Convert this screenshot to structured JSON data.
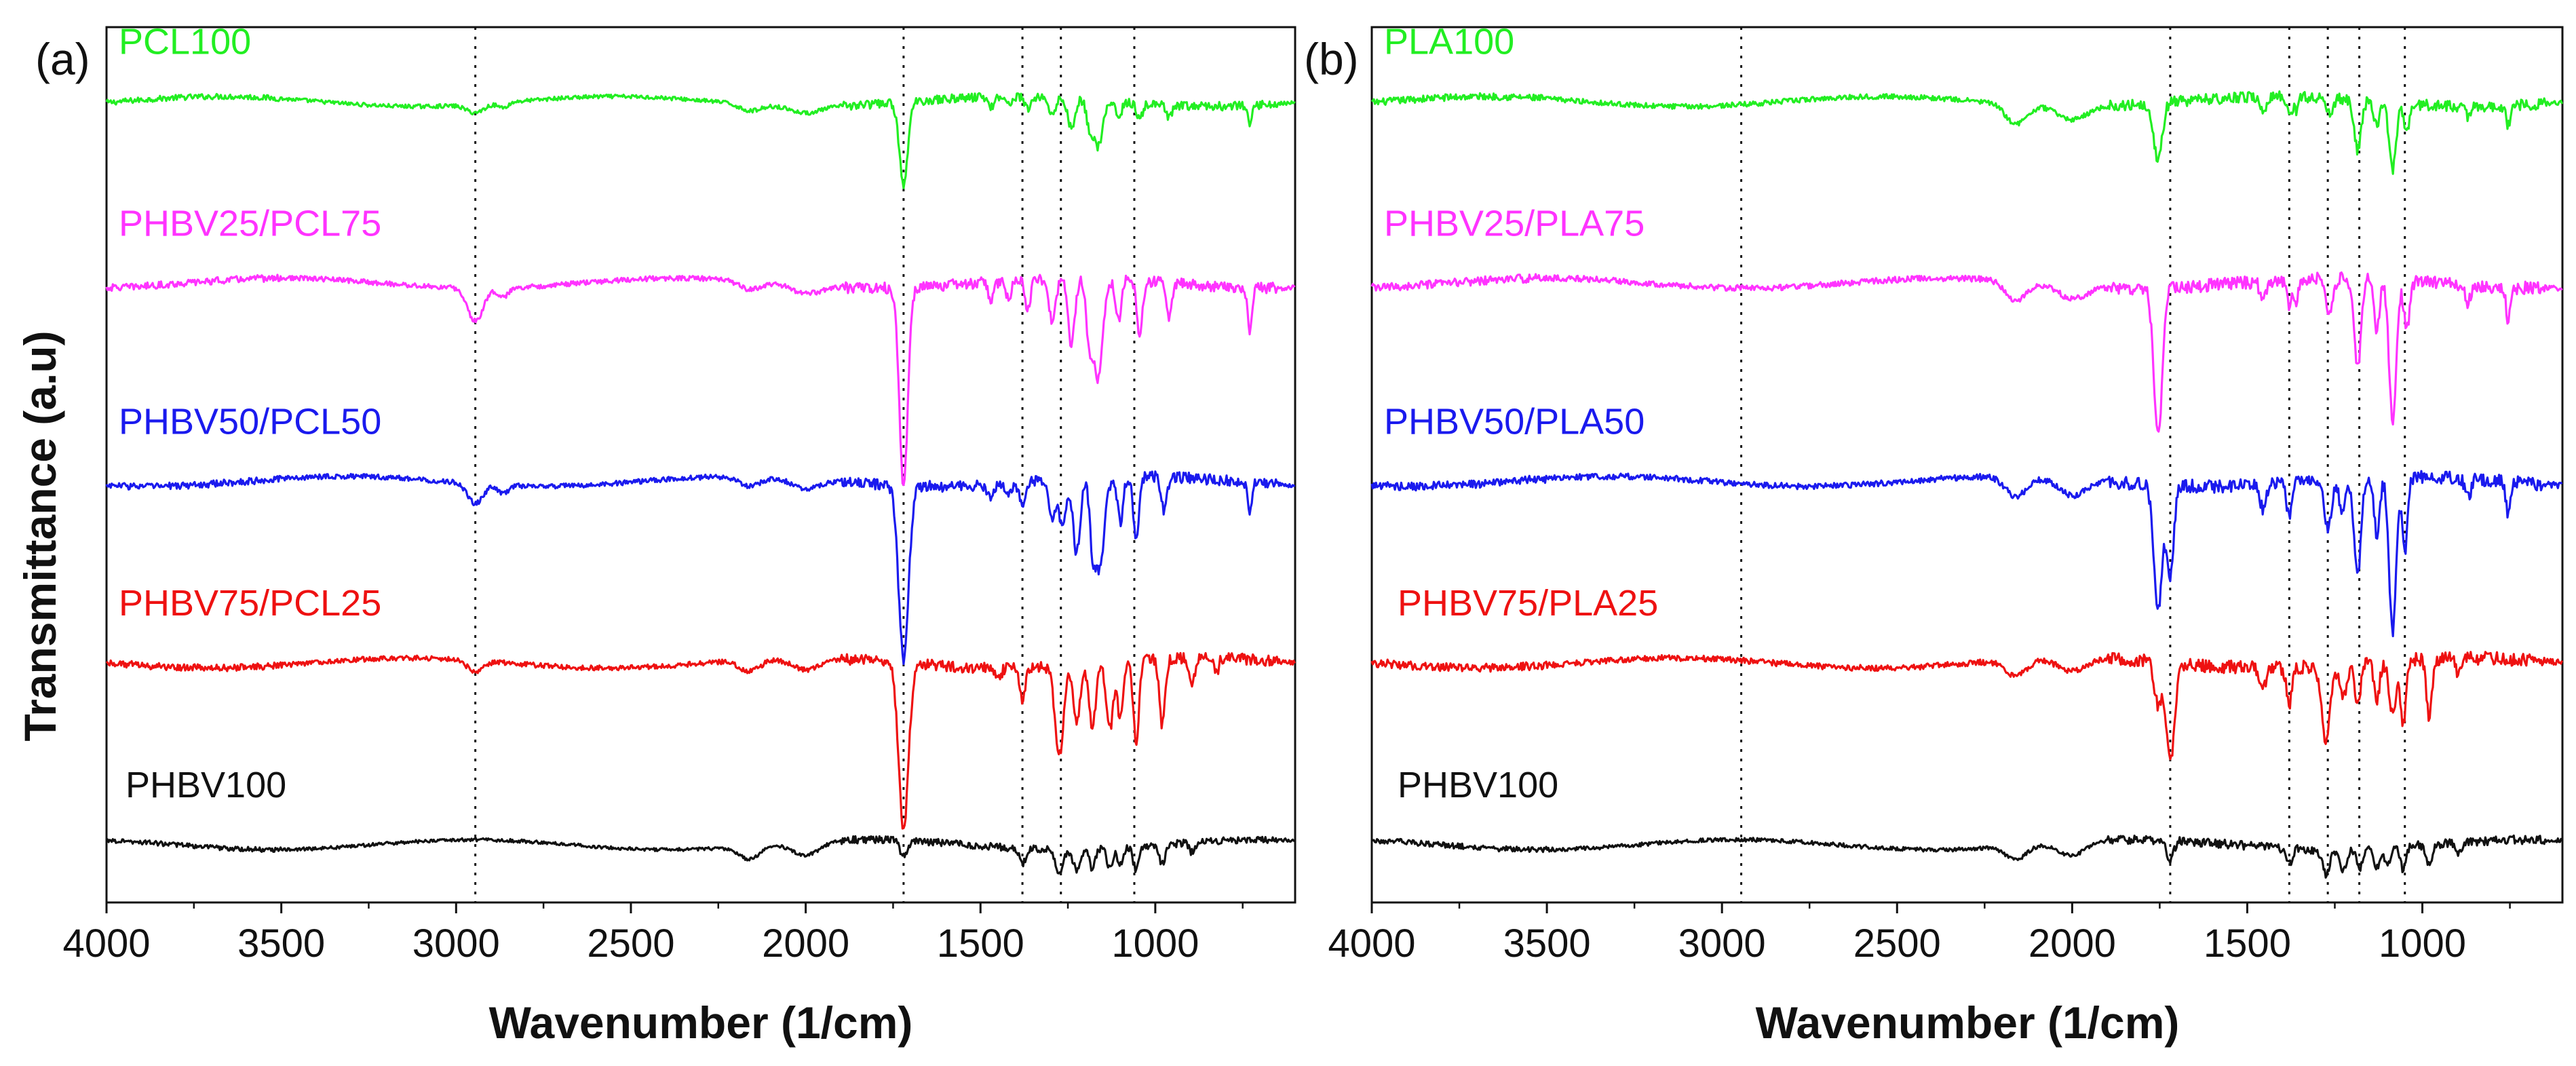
{
  "figure": {
    "y_axis_title": "Transmittance (a.u)"
  },
  "chart_data": [
    {
      "type": "line",
      "panel_label": "(a)",
      "xlabel": "Wavenumber (1/cm)",
      "ylabel": "Transmittance (a.u)",
      "xlim": [
        4000,
        600
      ],
      "x_reversed": true,
      "x_ticks": [
        4000,
        3500,
        3000,
        2500,
        2000,
        1500,
        1000
      ],
      "x_tick_labels": [
        "4000",
        "3500",
        "3000",
        "2500",
        "2000",
        "1500",
        "1000"
      ],
      "y_ticks_shown": false,
      "ylim": [
        0,
        5.3
      ],
      "reference_lines_x": [
        2945,
        1720,
        1380,
        1270,
        1060
      ],
      "reference_line_style": "dotted",
      "series": [
        {
          "name": "PCL100",
          "color": "#22ee22",
          "offset": 4.85,
          "bands": [
            [
              2945,
              0.05,
              25
            ],
            [
              2865,
              0.03,
              15
            ],
            [
              2160,
              0.04,
              30
            ],
            [
              2000,
              0.04,
              40
            ],
            [
              1720,
              0.5,
              12
            ],
            [
              1470,
              0.06,
              8
            ],
            [
              1420,
              0.05,
              8
            ],
            [
              1365,
              0.08,
              8
            ],
            [
              1295,
              0.1,
              10
            ],
            [
              1240,
              0.18,
              10
            ],
            [
              1190,
              0.12,
              8
            ],
            [
              1165,
              0.28,
              14
            ],
            [
              1105,
              0.1,
              8
            ],
            [
              1045,
              0.1,
              8
            ],
            [
              960,
              0.08,
              8
            ],
            [
              730,
              0.12,
              6
            ]
          ],
          "noise_amp": 0.012
        },
        {
          "name": "PHBV25/PCL75",
          "color": "#ff33ff",
          "offset": 3.75,
          "bands": [
            [
              2945,
              0.2,
              22
            ],
            [
              2865,
              0.06,
              14
            ],
            [
              2160,
              0.05,
              30
            ],
            [
              2000,
              0.05,
              40
            ],
            [
              1720,
              1.2,
              12
            ],
            [
              1470,
              0.12,
              8
            ],
            [
              1420,
              0.1,
              8
            ],
            [
              1365,
              0.18,
              8
            ],
            [
              1295,
              0.25,
              10
            ],
            [
              1240,
              0.4,
              10
            ],
            [
              1190,
              0.3,
              8
            ],
            [
              1165,
              0.6,
              14
            ],
            [
              1105,
              0.25,
              8
            ],
            [
              1045,
              0.35,
              8
            ],
            [
              960,
              0.2,
              8
            ],
            [
              730,
              0.28,
              6
            ]
          ],
          "noise_amp": 0.015
        },
        {
          "name": "PHBV50/PCL50",
          "color": "#1a1aee",
          "offset": 2.55,
          "bands": [
            [
              2945,
              0.12,
              22
            ],
            [
              2865,
              0.05,
              14
            ],
            [
              2160,
              0.06,
              30
            ],
            [
              2000,
              0.06,
              40
            ],
            [
              1720,
              1.05,
              14
            ],
            [
              1470,
              0.1,
              8
            ],
            [
              1420,
              0.08,
              8
            ],
            [
              1380,
              0.15,
              8
            ],
            [
              1295,
              0.22,
              10
            ],
            [
              1265,
              0.3,
              10
            ],
            [
              1225,
              0.45,
              10
            ],
            [
              1180,
              0.3,
              8
            ],
            [
              1160,
              0.55,
              14
            ],
            [
              1100,
              0.28,
              8
            ],
            [
              1055,
              0.4,
              8
            ],
            [
              975,
              0.2,
              8
            ],
            [
              730,
              0.2,
              6
            ]
          ],
          "noise_amp": 0.015
        },
        {
          "name": "PHBV75/PCL25",
          "color": "#ee1111",
          "offset": 1.45,
          "bands": [
            [
              2945,
              0.07,
              22
            ],
            [
              2160,
              0.07,
              30
            ],
            [
              2000,
              0.07,
              40
            ],
            [
              1720,
              1.0,
              14
            ],
            [
              1450,
              0.08,
              8
            ],
            [
              1380,
              0.2,
              8
            ],
            [
              1275,
              0.55,
              12
            ],
            [
              1225,
              0.35,
              10
            ],
            [
              1180,
              0.38,
              10
            ],
            [
              1130,
              0.4,
              10
            ],
            [
              1100,
              0.35,
              8
            ],
            [
              1055,
              0.5,
              8
            ],
            [
              980,
              0.4,
              8
            ],
            [
              895,
              0.15,
              8
            ],
            [
              825,
              0.1,
              6
            ]
          ],
          "noise_amp": 0.015
        },
        {
          "name": "PHBV100",
          "color": "#111111",
          "offset": 0.35,
          "bands": [
            [
              2160,
              0.08,
              30
            ],
            [
              2000,
              0.08,
              40
            ],
            [
              1720,
              0.1,
              10
            ],
            [
              1380,
              0.1,
              8
            ],
            [
              1275,
              0.15,
              10
            ],
            [
              1225,
              0.12,
              10
            ],
            [
              1180,
              0.12,
              8
            ],
            [
              1130,
              0.12,
              8
            ],
            [
              1100,
              0.1,
              8
            ],
            [
              1055,
              0.14,
              8
            ],
            [
              980,
              0.12,
              8
            ],
            [
              895,
              0.06,
              8
            ]
          ],
          "noise_amp": 0.01
        }
      ]
    },
    {
      "type": "line",
      "panel_label": "(b)",
      "xlabel": "Wavenumber (1/cm)",
      "ylabel": "",
      "xlim": [
        4000,
        600
      ],
      "x_reversed": true,
      "x_ticks": [
        4000,
        3500,
        3000,
        2500,
        2000,
        1500,
        1000
      ],
      "x_tick_labels": [
        "4000",
        "3500",
        "3000",
        "2500",
        "2000",
        "1500",
        "1000"
      ],
      "y_ticks_shown": false,
      "ylim": [
        0,
        5.3
      ],
      "reference_lines_x": [
        2945,
        1720,
        1380,
        1270,
        1180,
        1050
      ],
      "reference_line_style": "dotted",
      "series": [
        {
          "name": "PLA100",
          "color": "#22ee22",
          "offset": 4.85,
          "bands": [
            [
              2160,
              0.12,
              30
            ],
            [
              2000,
              0.08,
              40
            ],
            [
              1755,
              0.35,
              12
            ],
            [
              1455,
              0.1,
              8
            ],
            [
              1380,
              0.1,
              8
            ],
            [
              1360,
              0.08,
              6
            ],
            [
              1265,
              0.1,
              10
            ],
            [
              1185,
              0.3,
              10
            ],
            [
              1130,
              0.15,
              8
            ],
            [
              1085,
              0.4,
              10
            ],
            [
              1045,
              0.18,
              8
            ],
            [
              870,
              0.06,
              8
            ],
            [
              755,
              0.12,
              6
            ]
          ],
          "noise_amp": 0.015
        },
        {
          "name": "PHBV25/PLA75",
          "color": "#ff33ff",
          "offset": 3.75,
          "bands": [
            [
              2160,
              0.12,
              30
            ],
            [
              2000,
              0.08,
              40
            ],
            [
              1755,
              0.9,
              12
            ],
            [
              1455,
              0.12,
              8
            ],
            [
              1380,
              0.15,
              8
            ],
            [
              1360,
              0.12,
              6
            ],
            [
              1265,
              0.2,
              10
            ],
            [
              1185,
              0.55,
              10
            ],
            [
              1130,
              0.3,
              8
            ],
            [
              1085,
              0.85,
              10
            ],
            [
              1045,
              0.3,
              8
            ],
            [
              870,
              0.1,
              8
            ],
            [
              755,
              0.2,
              6
            ]
          ],
          "noise_amp": 0.018
        },
        {
          "name": "PHBV50/PLA50",
          "color": "#1a1aee",
          "offset": 2.55,
          "bands": [
            [
              2160,
              0.12,
              30
            ],
            [
              2000,
              0.1,
              40
            ],
            [
              1755,
              0.75,
              12
            ],
            [
              1720,
              0.55,
              10
            ],
            [
              1455,
              0.15,
              8
            ],
            [
              1380,
              0.2,
              8
            ],
            [
              1270,
              0.3,
              10
            ],
            [
              1230,
              0.2,
              8
            ],
            [
              1185,
              0.6,
              10
            ],
            [
              1130,
              0.35,
              8
            ],
            [
              1085,
              0.95,
              10
            ],
            [
              1050,
              0.45,
              8
            ],
            [
              870,
              0.12,
              8
            ],
            [
              755,
              0.2,
              6
            ]
          ],
          "noise_amp": 0.018
        },
        {
          "name": "PHBV75/PLA25",
          "color": "#ee1111",
          "offset": 1.45,
          "bands": [
            [
              2160,
              0.1,
              30
            ],
            [
              2000,
              0.08,
              40
            ],
            [
              1755,
              0.25,
              10
            ],
            [
              1720,
              0.6,
              12
            ],
            [
              1455,
              0.12,
              8
            ],
            [
              1380,
              0.22,
              8
            ],
            [
              1275,
              0.45,
              12
            ],
            [
              1225,
              0.2,
              10
            ],
            [
              1185,
              0.25,
              8
            ],
            [
              1130,
              0.22,
              8
            ],
            [
              1085,
              0.3,
              10
            ],
            [
              1055,
              0.4,
              8
            ],
            [
              980,
              0.35,
              8
            ],
            [
              895,
              0.1,
              8
            ]
          ],
          "noise_amp": 0.018
        },
        {
          "name": "PHBV100",
          "color": "#111111",
          "offset": 0.35,
          "bands": [
            [
              2160,
              0.08,
              30
            ],
            [
              2000,
              0.08,
              40
            ],
            [
              1720,
              0.12,
              10
            ],
            [
              1380,
              0.1,
              8
            ],
            [
              1275,
              0.15,
              10
            ],
            [
              1225,
              0.12,
              10
            ],
            [
              1180,
              0.12,
              8
            ],
            [
              1130,
              0.12,
              8
            ],
            [
              1100,
              0.1,
              8
            ],
            [
              1055,
              0.14,
              8
            ],
            [
              980,
              0.12,
              8
            ],
            [
              895,
              0.06,
              8
            ]
          ],
          "noise_amp": 0.012
        }
      ]
    }
  ]
}
